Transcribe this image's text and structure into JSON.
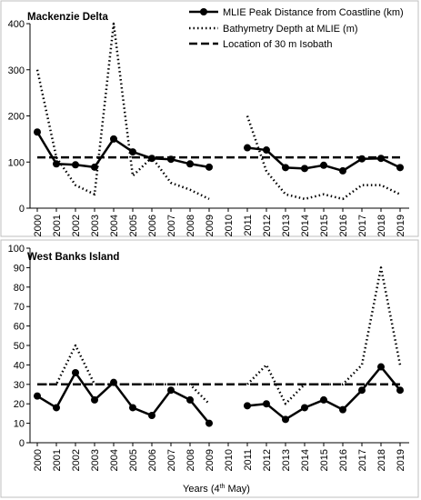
{
  "chart_data": [
    {
      "type": "line",
      "title": "Mackenzie Delta",
      "x": [
        "2000",
        "2001",
        "2002",
        "2003",
        "2004",
        "2005",
        "2006",
        "2007",
        "2008",
        "2009",
        "2010",
        "2011",
        "2012",
        "2013",
        "2014",
        "2015",
        "2016",
        "2017",
        "2018",
        "2019"
      ],
      "ylim": [
        0,
        400
      ],
      "yticks": [
        "0",
        "100",
        "200",
        "300",
        "400"
      ],
      "legend_position": "top-right",
      "series": [
        {
          "name": "MLIE Peak Distance from Coastline (km)",
          "style": "solid-markers",
          "values": [
            165,
            96,
            94,
            89,
            150,
            122,
            108,
            106,
            96,
            89,
            null,
            131,
            126,
            88,
            86,
            93,
            81,
            107,
            108,
            88
          ]
        },
        {
          "name": "Bathymetry Depth at MLIE (m)",
          "style": "dotted",
          "values": [
            300,
            110,
            50,
            30,
            400,
            70,
            110,
            55,
            40,
            20,
            null,
            200,
            80,
            30,
            20,
            30,
            20,
            50,
            50,
            30
          ]
        },
        {
          "name": "Location of 30 m Isobath",
          "style": "dashed",
          "values": [
            110,
            110,
            110,
            110,
            110,
            110,
            110,
            110,
            110,
            110,
            110,
            110,
            110,
            110,
            110,
            110,
            110,
            110,
            110,
            110
          ]
        }
      ]
    },
    {
      "type": "line",
      "title": "West Banks Island",
      "x": [
        "2000",
        "2001",
        "2002",
        "2003",
        "2004",
        "2005",
        "2006",
        "2007",
        "2008",
        "2009",
        "2010",
        "2011",
        "2012",
        "2013",
        "2014",
        "2015",
        "2016",
        "2017",
        "2018",
        "2019"
      ],
      "xlabel": "Years (4th May)",
      "ylim": [
        0,
        100
      ],
      "yticks": [
        "0",
        "10",
        "20",
        "30",
        "40",
        "50",
        "60",
        "70",
        "80",
        "90",
        "100"
      ],
      "series": [
        {
          "style": "solid-markers",
          "values": [
            24,
            18,
            36,
            22,
            31,
            18,
            14,
            27,
            22,
            10,
            null,
            19,
            20,
            12,
            18,
            22,
            17,
            27,
            39,
            27
          ]
        },
        {
          "style": "dotted",
          "values": [
            30,
            30,
            50,
            30,
            30,
            30,
            30,
            30,
            30,
            20,
            null,
            30,
            40,
            20,
            30,
            30,
            30,
            40,
            90,
            40
          ]
        },
        {
          "style": "dashed",
          "values": [
            30,
            30,
            30,
            30,
            30,
            30,
            30,
            30,
            30,
            30,
            30,
            30,
            30,
            30,
            30,
            30,
            30,
            30,
            30,
            30
          ]
        }
      ]
    }
  ],
  "xlabel_parts": {
    "pre": "Years (4",
    "sup": "th",
    "post": " May)"
  }
}
